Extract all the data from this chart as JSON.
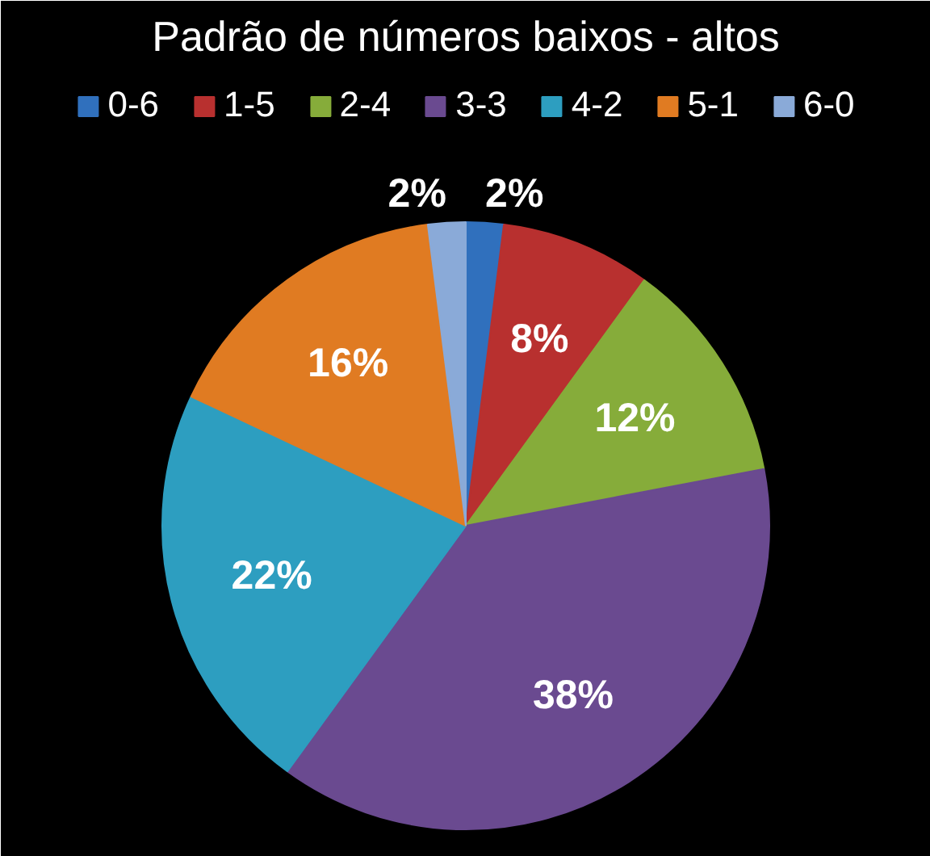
{
  "chart_data": {
    "type": "pie",
    "title": "Padrão de números baixos - altos",
    "categories": [
      "0-6",
      "1-5",
      "2-4",
      "3-3",
      "4-2",
      "5-1",
      "6-0"
    ],
    "values": [
      2,
      8,
      12,
      38,
      22,
      16,
      2
    ],
    "colors": [
      "#3070bd",
      "#b8302f",
      "#86ac3a",
      "#6a4a90",
      "#2d9ec0",
      "#e07b22",
      "#8aaad8"
    ],
    "value_labels": [
      "2%",
      "8%",
      "12%",
      "38%",
      "22%",
      "16%",
      "2%"
    ],
    "legend": "top"
  }
}
